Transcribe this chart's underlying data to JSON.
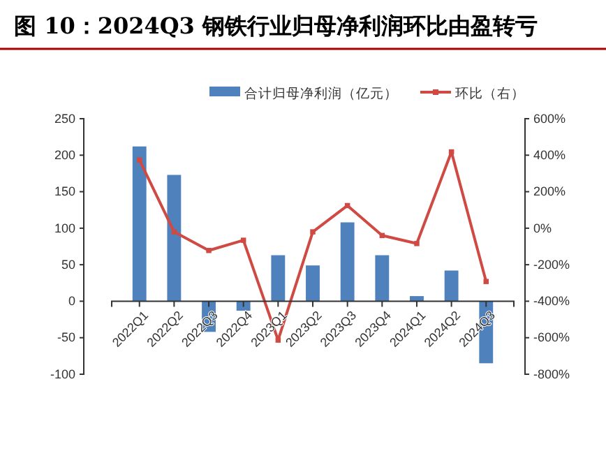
{
  "chart_data": {
    "type": "bar",
    "title": "图 10：2024Q3 钢铁行业归母净利润环比由盈转亏",
    "categories": [
      "2022Q1",
      "2022Q2",
      "2022Q3",
      "2022Q4",
      "2023Q1",
      "2023Q2",
      "2023Q3",
      "2023Q4",
      "2024Q1",
      "2024Q2",
      "2024Q3"
    ],
    "series": [
      {
        "name": "合计归母净利润（亿元）",
        "color": "#4f81bd",
        "values": [
          212,
          173,
          -42,
          -13,
          63,
          49,
          108,
          63,
          7,
          42,
          -85
        ]
      },
      {
        "name": "环比（右）",
        "type": "line",
        "axis": "y2",
        "color": "#d04a44",
        "marker": "square",
        "values": [
          374,
          -20,
          -122,
          -66,
          -613,
          -20,
          124,
          -40,
          -84,
          418,
          -292
        ]
      }
    ],
    "ylim": [
      -100,
      250
    ],
    "yticks": [
      -100,
      -50,
      0,
      50,
      100,
      150,
      200,
      250
    ],
    "y2lim": [
      -800,
      600
    ],
    "y2ticks": [
      {
        "value": -800,
        "label": "-800%"
      },
      {
        "value": -600,
        "label": "-600%"
      },
      {
        "value": -400,
        "label": "-400%"
      },
      {
        "value": -200,
        "label": "-200%"
      },
      {
        "value": 0,
        "label": "0%"
      },
      {
        "value": 200,
        "label": "200%"
      },
      {
        "value": 400,
        "label": "400%"
      },
      {
        "value": 600,
        "label": "600%"
      }
    ],
    "legend": "top right"
  }
}
